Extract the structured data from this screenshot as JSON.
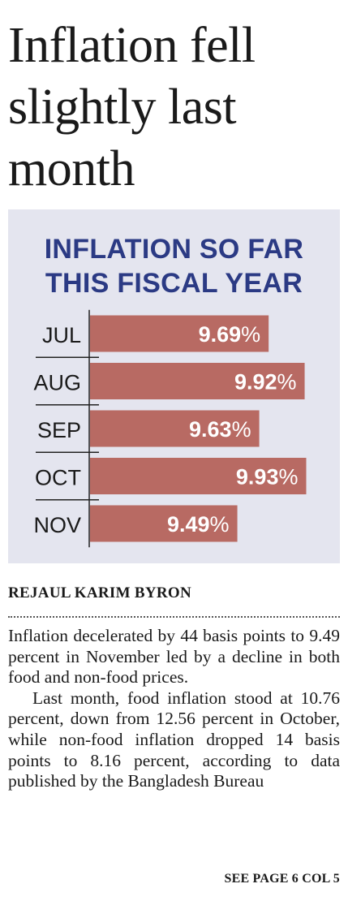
{
  "headline": "Inflation fell slightly last month",
  "chart_data": {
    "type": "bar",
    "orientation": "horizontal",
    "title_lines": [
      "INFLATION SO FAR",
      "THIS FISCAL YEAR"
    ],
    "categories": [
      "JUL",
      "AUG",
      "SEP",
      "OCT",
      "NOV"
    ],
    "values": [
      9.69,
      9.92,
      9.63,
      9.93,
      9.49
    ],
    "value_labels": [
      "9.69",
      "9.92",
      "9.63",
      "9.93",
      "9.49"
    ],
    "unit": "%",
    "bar_color": "#b86a63",
    "title_color": "#2b3a84",
    "background_color": "#e4e5ef"
  },
  "byline": "REJAUL KARIM BYRON",
  "paragraphs": [
    "Inflation decelerated by 44 basis points to 9.49 percent in November led by a decline in both food and non-­food prices.",
    "Last month, food inflation stood at 10.76 percent, down from 12.56 percent in October, while non-food inflation dropped 14 basis points to 8.16 percent, according to data published by the Bangladesh Bureau"
  ],
  "jump_line": "SEE PAGE 6 COL 5"
}
